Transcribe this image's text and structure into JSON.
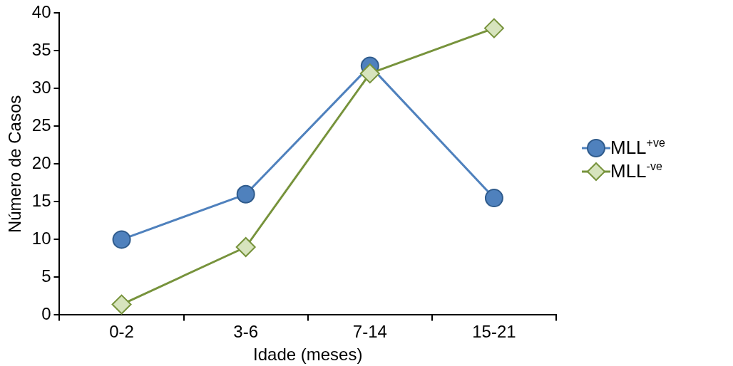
{
  "chart_data": {
    "type": "line",
    "xlabel": "Idade (meses)",
    "ylabel": "Número de Casos",
    "categories": [
      "0-2",
      "3-6",
      "7-14",
      "15-21"
    ],
    "series": [
      {
        "name": "MLL$^{+ve}$",
        "color": "#4f81bd",
        "marker": "circle",
        "values": [
          10,
          16,
          33,
          15.5
        ]
      },
      {
        "name": "MLL$^{-ve}$",
        "color": "#77933c",
        "marker": "diamond",
        "values": [
          1.4,
          9,
          32,
          38
        ]
      }
    ],
    "ylim": [
      0,
      40
    ],
    "yticks": [
      0,
      5,
      10,
      15,
      20,
      25,
      30,
      35,
      40
    ],
    "grid": false,
    "legend": "right",
    "line_style": "solid"
  }
}
